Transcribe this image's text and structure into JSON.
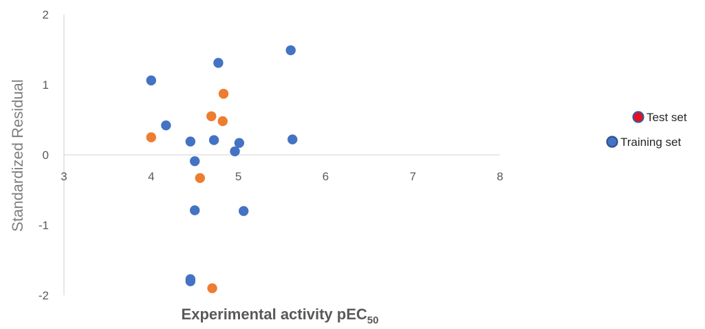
{
  "chart_data": {
    "type": "scatter",
    "xlabel": "Experimental activity pEC",
    "xlabel_sub": "50",
    "ylabel": "Standardized Residual",
    "xlim": [
      3,
      8
    ],
    "ylim": [
      -2,
      2
    ],
    "x_ticks": [
      "3",
      "4",
      "5",
      "6",
      "7",
      "8"
    ],
    "y_ticks": [
      "2",
      "1",
      "0",
      "-1",
      "-2"
    ],
    "grid": false,
    "legend_position": "right",
    "legend": [
      {
        "label": "Test set",
        "marker_fill": "#e8101c",
        "marker_edge": "#3a5a9c"
      },
      {
        "label": "Training set",
        "marker_fill": "#4472c4",
        "marker_edge": "#2f528f"
      }
    ],
    "series": [
      {
        "color": "#4472c4",
        "points": [
          [
            4.0,
            1.06
          ],
          [
            4.17,
            0.42
          ],
          [
            4.45,
            0.19
          ],
          [
            4.5,
            -0.09
          ],
          [
            4.5,
            -0.79
          ],
          [
            4.45,
            -1.77
          ],
          [
            4.45,
            -1.8
          ],
          [
            4.72,
            0.21
          ],
          [
            4.77,
            1.31
          ],
          [
            4.96,
            0.05
          ],
          [
            5.01,
            0.17
          ],
          [
            5.06,
            -0.8
          ],
          [
            5.6,
            1.49
          ],
          [
            5.62,
            0.22
          ]
        ]
      },
      {
        "color": "#ed7d31",
        "points": [
          [
            4.0,
            0.25
          ],
          [
            4.56,
            -0.33
          ],
          [
            4.69,
            0.55
          ],
          [
            4.7,
            -1.9
          ],
          [
            4.82,
            0.48
          ],
          [
            4.83,
            0.87
          ]
        ]
      }
    ]
  }
}
